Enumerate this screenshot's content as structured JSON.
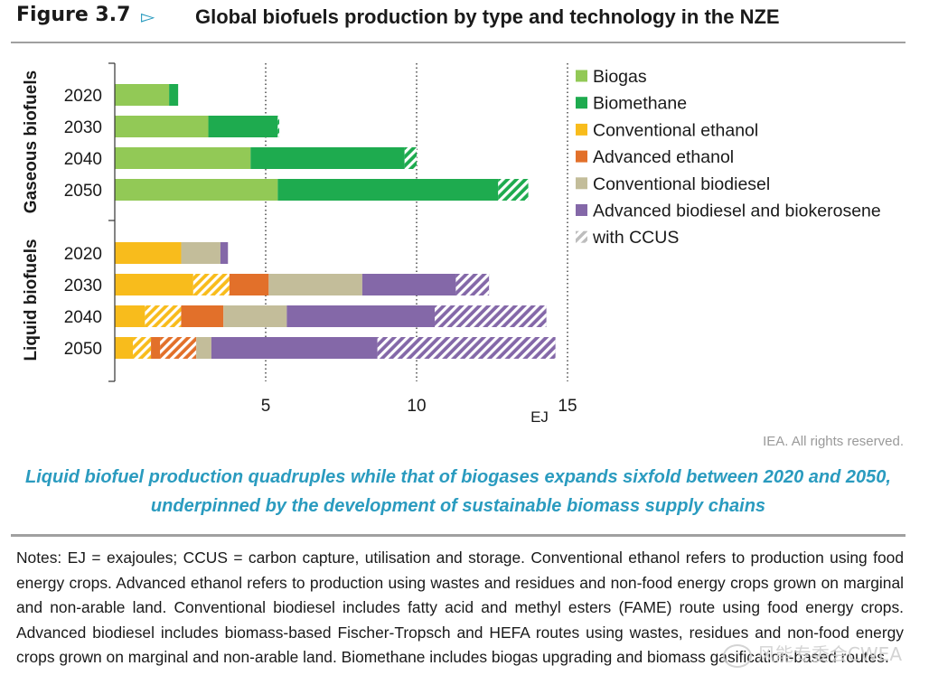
{
  "figure": {
    "number": "Figure 3.7",
    "arrow": "▻",
    "title": "Global biofuels production by type and technology in the NZE"
  },
  "colors": {
    "biogas": "#92c956",
    "biomethane": "#1eab4f",
    "conventional_ethanol": "#f8bc1c",
    "advanced_ethanol": "#e2702a",
    "conventional_biodiesel": "#c3bd9a",
    "advanced_biodiesel": "#8468a8",
    "ccus_swatch": "#bdbdbd",
    "grid": "#555555",
    "axis": "#333333"
  },
  "chart_data": {
    "type": "bar",
    "orientation": "horizontal",
    "stacked": true,
    "groups": [
      {
        "name": "Gaseous biofuels",
        "categories": [
          "2020",
          "2030",
          "2040",
          "2050"
        ]
      },
      {
        "name": "Liquid biofuels",
        "categories": [
          "2020",
          "2030",
          "2040",
          "2050"
        ]
      }
    ],
    "xlabel": "EJ",
    "xlim": [
      0,
      15
    ],
    "xticks": [
      5,
      10,
      15
    ],
    "grid": "dotted vertical lines at 5 and 10",
    "legend_position": "right",
    "legend": [
      {
        "label": "Biogas",
        "key": "biogas",
        "hatched": false
      },
      {
        "label": "Biomethane",
        "key": "biomethane",
        "hatched": false
      },
      {
        "label": "Conventional ethanol",
        "key": "conventional_ethanol",
        "hatched": false
      },
      {
        "label": "Advanced ethanol",
        "key": "advanced_ethanol",
        "hatched": false
      },
      {
        "label": "Conventional biodiesel",
        "key": "conventional_biodiesel",
        "hatched": false
      },
      {
        "label": "Advanced biodiesel and biokerosene",
        "key": "advanced_biodiesel",
        "hatched": false
      },
      {
        "label": "with CCUS",
        "key": "ccus_swatch",
        "hatched": true
      }
    ],
    "bars": [
      {
        "group": "Gaseous biofuels",
        "year": "2020",
        "segments": [
          {
            "key": "biogas",
            "value": 1.8,
            "ccus": false
          },
          {
            "key": "biomethane",
            "value": 0.3,
            "ccus": false
          }
        ]
      },
      {
        "group": "Gaseous biofuels",
        "year": "2030",
        "segments": [
          {
            "key": "biogas",
            "value": 3.1,
            "ccus": false
          },
          {
            "key": "biomethane",
            "value": 2.3,
            "ccus": false
          },
          {
            "key": "biomethane",
            "value": 0.05,
            "ccus": true
          }
        ]
      },
      {
        "group": "Gaseous biofuels",
        "year": "2040",
        "segments": [
          {
            "key": "biogas",
            "value": 4.5,
            "ccus": false
          },
          {
            "key": "biomethane",
            "value": 5.1,
            "ccus": false
          },
          {
            "key": "biomethane",
            "value": 0.4,
            "ccus": true
          }
        ]
      },
      {
        "group": "Gaseous biofuels",
        "year": "2050",
        "segments": [
          {
            "key": "biogas",
            "value": 5.4,
            "ccus": false
          },
          {
            "key": "biomethane",
            "value": 7.3,
            "ccus": false
          },
          {
            "key": "biomethane",
            "value": 1.0,
            "ccus": true
          }
        ]
      },
      {
        "group": "Liquid biofuels",
        "year": "2020",
        "segments": [
          {
            "key": "conventional_ethanol",
            "value": 2.2,
            "ccus": false
          },
          {
            "key": "conventional_biodiesel",
            "value": 1.3,
            "ccus": false
          },
          {
            "key": "advanced_biodiesel",
            "value": 0.25,
            "ccus": false
          }
        ]
      },
      {
        "group": "Liquid biofuels",
        "year": "2030",
        "segments": [
          {
            "key": "conventional_ethanol",
            "value": 2.6,
            "ccus": false
          },
          {
            "key": "conventional_ethanol",
            "value": 1.2,
            "ccus": true
          },
          {
            "key": "advanced_ethanol",
            "value": 1.3,
            "ccus": false
          },
          {
            "key": "conventional_biodiesel",
            "value": 3.1,
            "ccus": false
          },
          {
            "key": "advanced_biodiesel",
            "value": 3.1,
            "ccus": false
          },
          {
            "key": "advanced_biodiesel",
            "value": 1.1,
            "ccus": true
          }
        ]
      },
      {
        "group": "Liquid biofuels",
        "year": "2040",
        "segments": [
          {
            "key": "conventional_ethanol",
            "value": 1.0,
            "ccus": false
          },
          {
            "key": "conventional_ethanol",
            "value": 1.2,
            "ccus": true
          },
          {
            "key": "advanced_ethanol",
            "value": 1.4,
            "ccus": false
          },
          {
            "key": "conventional_biodiesel",
            "value": 2.1,
            "ccus": false
          },
          {
            "key": "advanced_biodiesel",
            "value": 4.9,
            "ccus": false
          },
          {
            "key": "advanced_biodiesel",
            "value": 3.7,
            "ccus": true
          }
        ]
      },
      {
        "group": "Liquid biofuels",
        "year": "2050",
        "segments": [
          {
            "key": "conventional_ethanol",
            "value": 0.6,
            "ccus": false
          },
          {
            "key": "conventional_ethanol",
            "value": 0.6,
            "ccus": true
          },
          {
            "key": "advanced_ethanol",
            "value": 0.3,
            "ccus": false
          },
          {
            "key": "advanced_ethanol",
            "value": 1.2,
            "ccus": true
          },
          {
            "key": "conventional_biodiesel",
            "value": 0.5,
            "ccus": false
          },
          {
            "key": "advanced_biodiesel",
            "value": 5.5,
            "ccus": false
          },
          {
            "key": "advanced_biodiesel",
            "value": 5.9,
            "ccus": true
          }
        ]
      }
    ]
  },
  "rights": "IEA. All rights reserved.",
  "caption": "Liquid biofuel production quadruples while that of biogases expands sixfold between 2020 and 2050, underpinned by the development of sustainable biomass supply chains",
  "notes": "Notes: EJ = exajoules; CCUS = carbon capture, utilisation and storage. Conventional ethanol refers to production using food energy crops. Advanced ethanol refers to production using wastes and residues and non-food energy crops grown on marginal and non-arable land. Conventional biodiesel includes fatty acid and methyl esters (FAME) route using food energy crops. Advanced biodiesel includes biomass-based Fischer-Tropsch and HEFA routes using wastes, residues and non-food energy crops grown on marginal and non-arable land. Biomethane includes biogas upgrading and biomass gasification-based routes.",
  "watermark": "风能专委会CWEA"
}
